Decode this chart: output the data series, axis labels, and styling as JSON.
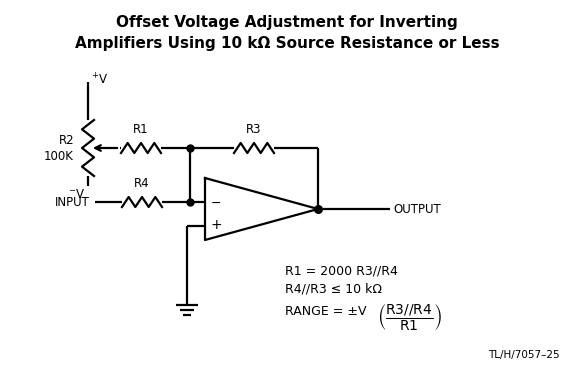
{
  "title_line1": "Offset Voltage Adjustment for Inverting",
  "title_line2": "Amplifiers Using 10 kΩ Source Resistance or Less",
  "background_color": "#ffffff",
  "label_R1": "R1",
  "label_R2": "R2",
  "label_R2b": "100K",
  "label_R3": "R3",
  "label_R4": "R4",
  "label_plus_v": "+V",
  "label_minus_v": "⁻V",
  "label_input": "INPUT",
  "label_output": "OUTPUT",
  "label_plus": "+",
  "label_minus": "−",
  "eq1": "R1 = 2000 R3//R4",
  "eq2": "R4//R3 ≤ 10 kΩ",
  "eq3_prefix": "RANGE = ±V",
  "eq3_num": "R3//R4",
  "eq3_den": "R1",
  "footnote": "TL/H/7057–25",
  "title_fontsize": 11,
  "body_fontsize": 8.5,
  "eq_fontsize": 9
}
